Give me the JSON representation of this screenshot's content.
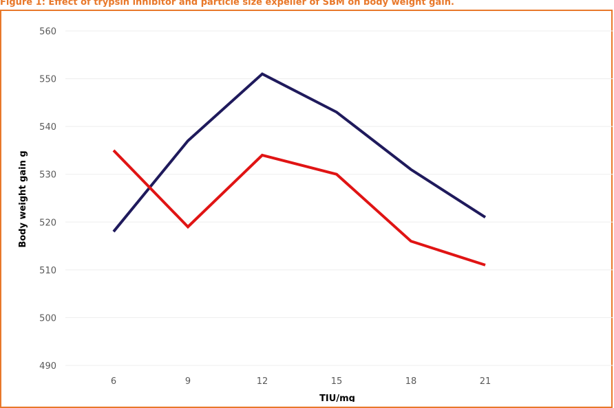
{
  "figure": {
    "caption": "Figure 1: Effect of trypsin inhibitor and particle size expeller of SBM on body weight gain."
  },
  "chart_data": {
    "type": "line",
    "title": "",
    "xlabel": "TIU/mg",
    "ylabel": "Body weight gain g",
    "categories": [
      "6",
      "9",
      "12",
      "15",
      "18",
      "21"
    ],
    "yticks": [
      "560",
      "550",
      "540",
      "530",
      "520",
      "510",
      "500",
      "490"
    ],
    "ylim": [
      490,
      560
    ],
    "grid": true,
    "series": [
      {
        "color": "#1F1A5C",
        "values": [
          518,
          537,
          551,
          543,
          531,
          521
        ]
      },
      {
        "color": "#E01414",
        "values": [
          535,
          519,
          534,
          530,
          516,
          511
        ]
      }
    ]
  }
}
